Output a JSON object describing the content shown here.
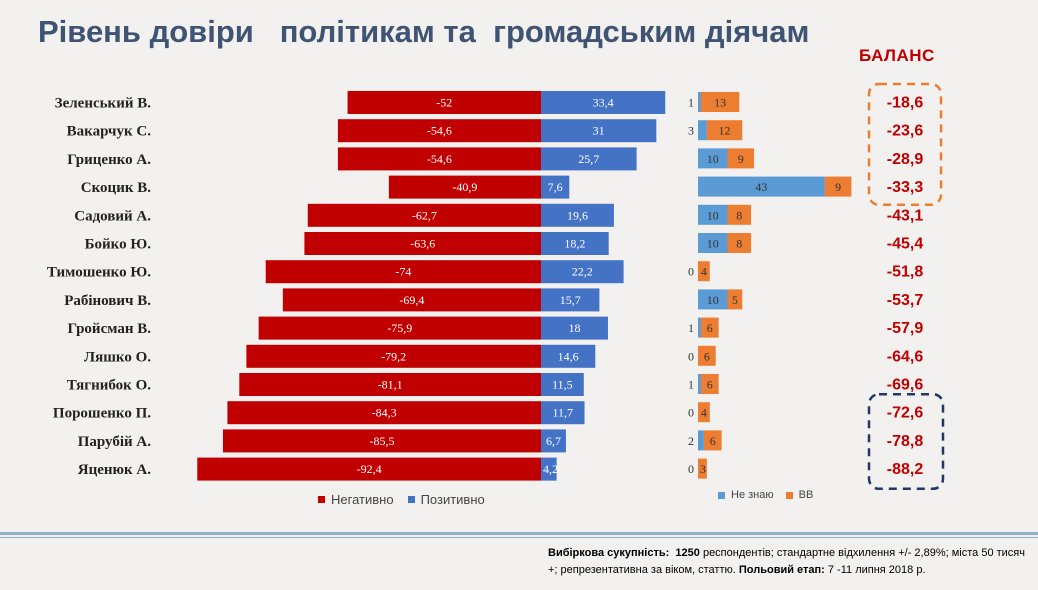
{
  "title": "Рівень довіри   політикам та  громадським діячам",
  "balance_title": "БАЛАНС",
  "colors": {
    "negative": "#c00000",
    "positive": "#4472c4",
    "dont_know": "#5b9bd5",
    "hard_to_say": "#ed7d31",
    "balance_text": "#c00000",
    "orange_box": "#ed7d31",
    "navy_box": "#1f3864"
  },
  "legend_main": {
    "negative": "Негативно",
    "positive": "Позитивно"
  },
  "legend_secondary": {
    "dont_know": "Не знаю",
    "hard_to_say": "ВВ"
  },
  "footnote": {
    "bold1": "Вибіркова сукупність:",
    "bold2": "1250",
    "text1": " респондентів; стандартне   відхилення +/- 2,89%; міста 50 тисяч +; репрезентативна за віком, статтю. ",
    "bold3": "Польовий етап:",
    "text2": " 7 -11 липня 2018 р."
  },
  "chart_data": {
    "type": "bar",
    "categories": [
      "Зеленський В.",
      "Вакарчук С.",
      "Гриценко А.",
      "Скоцик В.",
      "Садовий А.",
      "Бойко Ю.",
      "Тимошенко Ю.",
      "Рабінович В.",
      "Гройсман В.",
      "Ляшко О.",
      "Тягнибок О.",
      "Порошенко П.",
      "Парубій А.",
      "Яценюк А."
    ],
    "series": [
      {
        "name": "Негативно",
        "values": [
          -52,
          -54.6,
          -54.6,
          -40.9,
          -62.7,
          -63.6,
          -74,
          -69.4,
          -75.9,
          -79.2,
          -81.1,
          -84.3,
          -85.5,
          -92.4
        ]
      },
      {
        "name": "Позитивно",
        "values": [
          33.4,
          31,
          25.7,
          7.6,
          19.6,
          18.2,
          22.2,
          15.7,
          18,
          14.6,
          11.5,
          11.7,
          6.7,
          4.2
        ]
      },
      {
        "name": "Не знаю",
        "values": [
          1,
          3,
          10,
          43,
          10,
          10,
          0,
          10,
          1,
          0,
          1,
          0,
          2,
          0
        ]
      },
      {
        "name": "ВВ",
        "values": [
          13,
          12,
          9,
          9,
          8,
          8,
          4,
          5,
          6,
          6,
          6,
          4,
          6,
          3
        ]
      }
    ],
    "labels": {
      "negative": [
        "-52",
        "-54,6",
        "-54,6",
        "-40,9",
        "-62,7",
        "-63,6",
        "-74",
        "-69,4",
        "-75,9",
        "-79,2",
        "-81,1",
        "-84,3",
        "-85,5",
        "-92,4"
      ],
      "positive": [
        "33,4",
        "31",
        "25,7",
        "7,6",
        "19,6",
        "18,2",
        "22,2",
        "15,7",
        "18",
        "14,6",
        "11,5",
        "11,7",
        "6,7",
        "4,2"
      ],
      "dont_know": [
        "1",
        "3",
        "10",
        "43",
        "10",
        "10",
        "0",
        "10",
        "1",
        "0",
        "1",
        "0",
        "2",
        "0"
      ],
      "hard_to_say": [
        "13",
        "12",
        "9",
        "9",
        "8",
        "8",
        "4",
        "5",
        "6",
        "6",
        "6",
        "4",
        "6",
        "3"
      ]
    },
    "balance": [
      "-18,6",
      "-23,6",
      "-28,9",
      "-33,3",
      "-43,1",
      "-45,4",
      "-51,8",
      "-53,7",
      "-57,9",
      "-64,6",
      "-69,6",
      "-72,6",
      "-78,8",
      "-88,2"
    ],
    "highlight_top_rows": [
      0,
      1,
      2,
      3
    ],
    "highlight_bottom_rows": [
      11,
      12,
      13
    ]
  }
}
